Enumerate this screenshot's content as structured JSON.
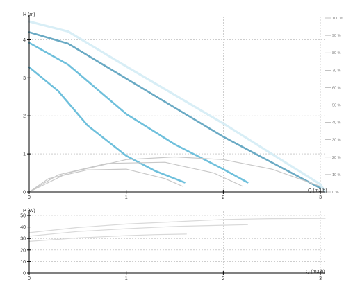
{
  "colors": {
    "curve_light": "#d8eef6",
    "curve_mid": "#6aaac4",
    "curve_bright": "#6fc0dc",
    "efficiency": "#c8c8c8",
    "power": "#d9d9d9",
    "grid": "#b0b0b0",
    "axis": "#000000"
  },
  "chart_data": [
    {
      "type": "line",
      "ylabel": "H (m)",
      "xlabel": "Q (m3/h)",
      "xlim": [
        0,
        3.05
      ],
      "ylim": [
        0,
        4.5
      ],
      "x_ticks": [
        "0",
        "1",
        "2",
        "3"
      ],
      "y_ticks": [
        "0",
        "1",
        "2",
        "3",
        "4"
      ],
      "right_ticks": [
        "0 %",
        "10 %",
        "20 %",
        "30 %",
        "40 %",
        "50 %",
        "60 %",
        "70 %",
        "80 %",
        "90 %",
        "100 %"
      ],
      "series": [
        {
          "style": "light",
          "points": [
            [
              0,
              4.48
            ],
            [
              0.4,
              4.22
            ],
            [
              1.0,
              3.3
            ],
            [
              2.0,
              1.8
            ],
            [
              3.0,
              0.2
            ],
            [
              3.05,
              0.0
            ]
          ]
        },
        {
          "style": "mid",
          "points": [
            [
              0,
              4.2
            ],
            [
              0.4,
              3.9
            ],
            [
              1.0,
              2.98
            ],
            [
              2.0,
              1.45
            ],
            [
              3.0,
              0.1
            ]
          ]
        },
        {
          "style": "bright",
          "points": [
            [
              0,
              3.92
            ],
            [
              0.4,
              3.35
            ],
            [
              1.0,
              2.05
            ],
            [
              1.5,
              1.25
            ],
            [
              2.0,
              0.6
            ],
            [
              2.25,
              0.25
            ]
          ]
        },
        {
          "style": "bright",
          "points": [
            [
              0,
              3.28
            ],
            [
              0.3,
              2.65
            ],
            [
              0.6,
              1.75
            ],
            [
              1.0,
              0.95
            ],
            [
              1.3,
              0.55
            ],
            [
              1.6,
              0.25
            ]
          ]
        },
        {
          "style": "efficiency",
          "points": [
            [
              0,
              0.0
            ],
            [
              0.4,
              0.5
            ],
            [
              1.0,
              0.85
            ],
            [
              1.5,
              0.92
            ],
            [
              2.0,
              0.85
            ],
            [
              2.5,
              0.6
            ],
            [
              3.0,
              0.15
            ]
          ]
        },
        {
          "style": "efficiency",
          "points": [
            [
              0,
              0.0
            ],
            [
              0.3,
              0.45
            ],
            [
              0.8,
              0.75
            ],
            [
              1.4,
              0.78
            ],
            [
              1.9,
              0.5
            ],
            [
              2.2,
              0.15
            ]
          ]
        },
        {
          "style": "efficiency",
          "points": [
            [
              0,
              0.0
            ],
            [
              0.2,
              0.35
            ],
            [
              0.6,
              0.58
            ],
            [
              1.0,
              0.6
            ],
            [
              1.4,
              0.35
            ],
            [
              1.58,
              0.15
            ]
          ]
        }
      ]
    },
    {
      "type": "line",
      "ylabel": "P (W)",
      "xlabel": "Q (m3/h)",
      "xlim": [
        0,
        3.05
      ],
      "ylim": [
        0,
        50
      ],
      "x_ticks": [
        "0",
        "1",
        "2",
        "3"
      ],
      "y_ticks": [
        "0",
        "10",
        "20",
        "30",
        "40",
        "50"
      ],
      "series": [
        {
          "style": "power",
          "points": [
            [
              0,
              35
            ],
            [
              0.5,
              39.5
            ],
            [
              1.0,
              42.5
            ],
            [
              1.5,
              44.5
            ],
            [
              2.0,
              46.5
            ],
            [
              2.5,
              47.2
            ],
            [
              3.05,
              47.5
            ]
          ]
        },
        {
          "style": "power",
          "points": [
            [
              0,
              32
            ],
            [
              0.5,
              36
            ],
            [
              1.0,
              38.5
            ],
            [
              1.5,
              40.5
            ],
            [
              2.0,
              41.5
            ],
            [
              2.25,
              42
            ]
          ]
        },
        {
          "style": "power",
          "points": [
            [
              0,
              27.5
            ],
            [
              0.5,
              30.5
            ],
            [
              1.0,
              32.5
            ],
            [
              1.3,
              33.3
            ],
            [
              1.62,
              33.8
            ]
          ]
        }
      ]
    }
  ]
}
